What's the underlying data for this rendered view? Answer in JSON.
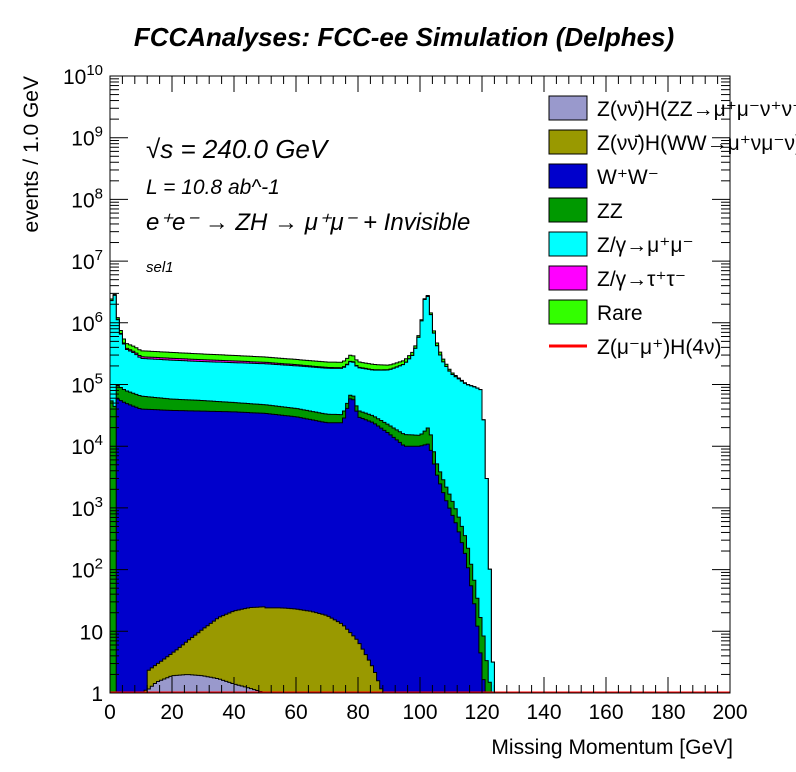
{
  "chart_data": {
    "type": "area",
    "title": "FCCAnalyses: FCC-ee Simulation (Delphes)",
    "xlabel": "Missing Momentum [GeV]",
    "ylabel": "events / 1.0 GeV",
    "xlim": [
      0,
      200
    ],
    "ylim": [
      1,
      10000000000
    ],
    "yscale": "log",
    "stacked": true,
    "grid": false,
    "legend_position": "top-right",
    "xticks": [
      "0",
      "20",
      "40",
      "60",
      "80",
      "100",
      "120",
      "140",
      "160",
      "180",
      "200"
    ],
    "yticks": [
      "1",
      "10",
      "10^2",
      "10^3",
      "10^4",
      "10^5",
      "10^6",
      "10^7",
      "10^8",
      "10^9",
      "10^10"
    ],
    "annotations": {
      "energy": "√s = 240.0 GeV",
      "lumi": "L = 10.8 ab^-1",
      "process": "e⁺e⁻ → ZH → μ⁺μ⁻ + Invisible",
      "selection": "sel1"
    },
    "series": [
      {
        "name": "Z(νν̄)H(ZZ→μ⁺μ⁻ν⁺ν⁻)",
        "color": "#9999cc",
        "x": [
          12,
          15,
          20,
          25,
          30,
          35,
          40,
          45,
          50
        ],
        "values": [
          1.1,
          1.5,
          1.9,
          2.0,
          1.9,
          1.7,
          1.4,
          1.2,
          1.0
        ]
      },
      {
        "name": "Z(νν̄)H(WW→μ⁺νμ⁻ν)",
        "color": "#999900",
        "x": [
          10,
          15,
          20,
          25,
          30,
          35,
          40,
          45,
          50,
          55,
          60,
          65,
          70,
          75,
          80,
          85,
          88
        ],
        "values": [
          1,
          1.4,
          2.5,
          5,
          9,
          15,
          20,
          23,
          24,
          24,
          23,
          21,
          18,
          13,
          7,
          2.5,
          1
        ]
      },
      {
        "name": "W⁺W⁻",
        "color": "#0000cc",
        "x": [
          2,
          5,
          10,
          20,
          30,
          40,
          50,
          60,
          70,
          75,
          78,
          80,
          85,
          90,
          95,
          100,
          103,
          105,
          108,
          112,
          115,
          118,
          121
        ],
        "values": [
          60000,
          50000,
          40000,
          38000,
          37000,
          36000,
          34000,
          30000,
          24000,
          24000,
          70000,
          30000,
          24000,
          16000,
          10000,
          10000,
          11000,
          4000,
          1500,
          500,
          150,
          20,
          1
        ]
      },
      {
        "name": "ZZ",
        "color": "#009900",
        "x": [
          0,
          2,
          5,
          10,
          20,
          30,
          40,
          50,
          60,
          70,
          80,
          90,
          100,
          103,
          105,
          110,
          115,
          118,
          121,
          123
        ],
        "values": [
          60000,
          40000,
          30000,
          25000,
          20000,
          18000,
          15000,
          13000,
          11000,
          9000,
          8000,
          6000,
          5000,
          10000,
          2000,
          600,
          150,
          30,
          5,
          1
        ]
      },
      {
        "name": "Z/γ→μ⁺μ⁻",
        "color": "#00ffff",
        "x": [
          0,
          1,
          2,
          3,
          5,
          8,
          10,
          20,
          30,
          40,
          50,
          60,
          70,
          75,
          78,
          80,
          85,
          90,
          95,
          98,
          100,
          101,
          102,
          103,
          104,
          105,
          107,
          110,
          115,
          118,
          120,
          122,
          123,
          124
        ],
        "values": [
          1000000,
          5000000,
          1500000,
          700000,
          300000,
          250000,
          200000,
          190000,
          180000,
          175000,
          170000,
          160000,
          150000,
          150000,
          170000,
          150000,
          140000,
          150000,
          200000,
          300000,
          700000,
          1600000,
          3500000,
          2000000,
          900000,
          500000,
          250000,
          150000,
          100000,
          90000,
          80000,
          1000,
          10,
          1
        ]
      },
      {
        "name": "Z/γ→τ⁺τ⁻",
        "color": "#ff00ff",
        "x": [
          0,
          2,
          5,
          10,
          15,
          20,
          30,
          40,
          50,
          60,
          70,
          80,
          85,
          90,
          95,
          100,
          105,
          108,
          110,
          112,
          115,
          117,
          119,
          120,
          121,
          122
        ],
        "values": [
          12000,
          15000,
          16000,
          17000,
          18000,
          18000,
          17000,
          15000,
          12000,
          9000,
          6000,
          3500,
          2500,
          1600,
          1000,
          500,
          200,
          100,
          50,
          25,
          10,
          4,
          2,
          1.5,
          1.2,
          1
        ]
      },
      {
        "name": "Rare",
        "color": "#33ff00",
        "x": [
          0,
          2,
          5,
          10,
          20,
          30,
          40,
          50,
          60,
          70,
          75,
          78,
          80,
          85,
          90,
          95,
          100,
          102,
          103,
          104,
          105,
          107,
          110,
          115,
          118,
          120,
          122
        ],
        "values": [
          150000,
          80000,
          75000,
          70000,
          65000,
          60000,
          55000,
          50000,
          45000,
          42000,
          42000,
          65000,
          42000,
          38000,
          32000,
          30000,
          40000,
          80000,
          120000,
          70000,
          50000,
          30000,
          10000,
          2000,
          500,
          50,
          1
        ]
      },
      {
        "name": "Z(μ⁻μ⁺)H(4ν)",
        "color": "#ff0000",
        "style": "line",
        "x": [
          0,
          200
        ],
        "values": [
          1,
          1
        ]
      }
    ]
  }
}
